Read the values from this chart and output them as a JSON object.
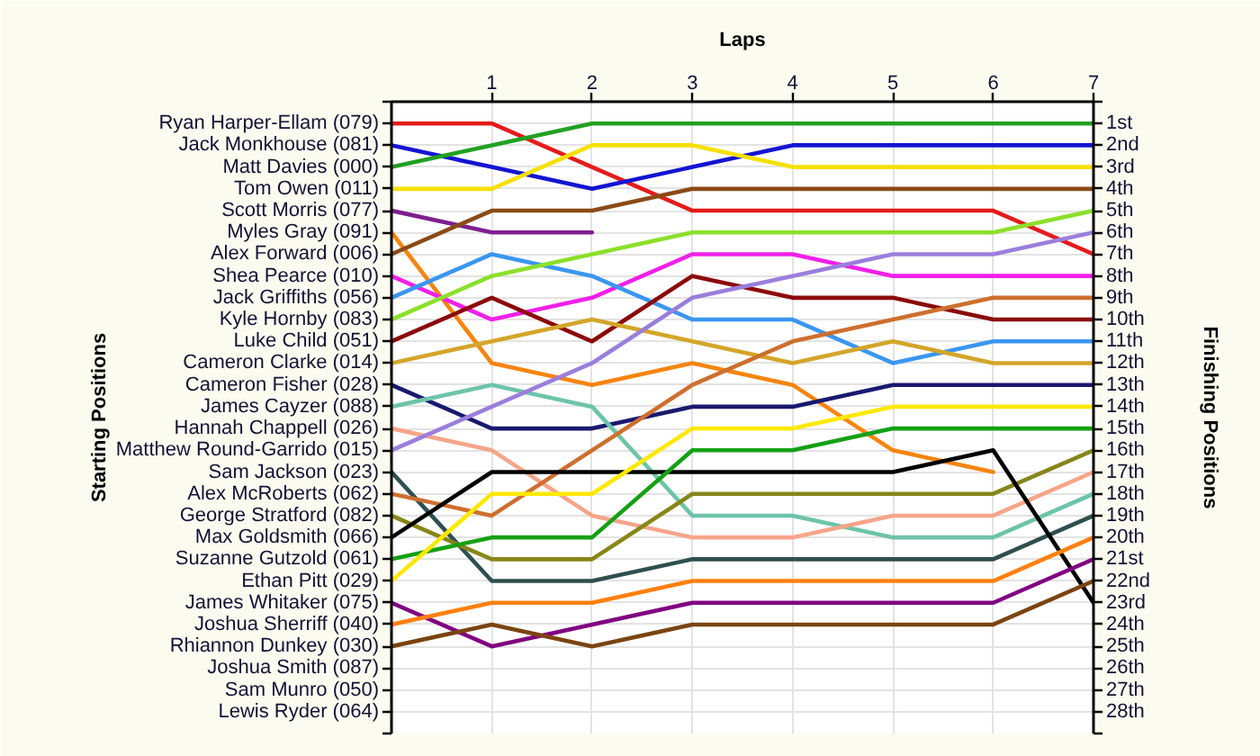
{
  "chart_data": {
    "type": "line",
    "xlabel": "Laps",
    "y2label": "Finishing Positions",
    "annotations": [
      "Starting Positions"
    ],
    "x": [
      0,
      1,
      2,
      3,
      4,
      5,
      6,
      7
    ],
    "xlim": [
      0,
      7
    ],
    "xticks": [
      1,
      2,
      3,
      4,
      5,
      6,
      7
    ],
    "y_categories": [
      "Ryan Harper-Ellam (079)",
      "Jack Monkhouse (081)",
      "Matt Davies (000)",
      "Tom Owen (011)",
      "Scott Morris (077)",
      "Myles Gray (091)",
      "Alex Forward (006)",
      "Shea Pearce (010)",
      "Jack Griffiths (056)",
      "Kyle Hornby (083)",
      "Luke Child (051)",
      "Cameron Clarke (014)",
      "Cameron Fisher (028)",
      "James Cayzer (088)",
      "Hannah Chappell (026)",
      "Matthew Round-Garrido (015)",
      "Sam Jackson (023)",
      "Alex McRoberts (062)",
      "George Stratford (082)",
      "Max Goldsmith (066)",
      "Suzanne Gutzold (061)",
      "Ethan Pitt (029)",
      "James Whitaker (075)",
      "Joshua Sherriff (040)",
      "Rhiannon Dunkey (030)",
      "Joshua Smith (087)",
      "Sam Munro (050)",
      "Lewis Ryder (064)"
    ],
    "y2lim": [
      29,
      0
    ],
    "y2ticks": [
      {
        "value": 0,
        "label": null
      },
      {
        "value": 1,
        "label": "1st"
      },
      {
        "value": 2,
        "label": "2nd"
      },
      {
        "value": 3,
        "label": "3rd"
      },
      {
        "value": 4,
        "label": "4th"
      },
      {
        "value": 5,
        "label": "5th"
      },
      {
        "value": 6,
        "label": "6th"
      },
      {
        "value": 7,
        "label": "7th"
      },
      {
        "value": 8,
        "label": "8th"
      },
      {
        "value": 9,
        "label": "9th"
      },
      {
        "value": 10,
        "label": "10th"
      },
      {
        "value": 11,
        "label": "11th"
      },
      {
        "value": 12,
        "label": "12th"
      },
      {
        "value": 13,
        "label": "13th"
      },
      {
        "value": 14,
        "label": "14th"
      },
      {
        "value": 15,
        "label": "15th"
      },
      {
        "value": 16,
        "label": "16th"
      },
      {
        "value": 17,
        "label": "17th"
      },
      {
        "value": 18,
        "label": "18th"
      },
      {
        "value": 19,
        "label": "19th"
      },
      {
        "value": 20,
        "label": "20th"
      },
      {
        "value": 21,
        "label": "21st"
      },
      {
        "value": 22,
        "label": "22nd"
      },
      {
        "value": 23,
        "label": "23rd"
      },
      {
        "value": 24,
        "label": "24th"
      },
      {
        "value": 25,
        "label": "25th"
      },
      {
        "value": 26,
        "label": "26th"
      },
      {
        "value": 27,
        "label": "27th"
      },
      {
        "value": 28,
        "label": "28th"
      },
      {
        "value": 29,
        "label": null
      }
    ],
    "grid": true,
    "line_style": "solid",
    "series": [
      {
        "color": "#e41b1b",
        "axis": "y2",
        "values": [
          1,
          1,
          3,
          5,
          5,
          5,
          5,
          7
        ]
      },
      {
        "color": "#1414d2",
        "axis": "y2",
        "values": [
          2,
          3,
          4,
          3,
          2,
          2,
          2,
          2
        ]
      },
      {
        "color": "#22a022",
        "axis": "y2",
        "values": [
          3,
          2,
          1,
          1,
          1,
          1,
          1,
          1
        ]
      },
      {
        "color": "#f5e000",
        "axis": "y2",
        "values": [
          4,
          4,
          2,
          2,
          3,
          3,
          3,
          3
        ]
      },
      {
        "color": "#7f1f8f",
        "axis": "y2",
        "values": [
          5,
          6,
          6,
          null,
          null,
          null,
          null,
          null
        ]
      },
      {
        "color": "#f5850f",
        "axis": "y2",
        "values": [
          6,
          12,
          13,
          12,
          13,
          16,
          17,
          null
        ]
      },
      {
        "color": "#8b4a16",
        "axis": "y2",
        "values": [
          7,
          5,
          5,
          4,
          4,
          4,
          4,
          4
        ]
      },
      {
        "color": "#f020e8",
        "axis": "y2",
        "values": [
          8,
          10,
          9,
          7,
          7,
          8,
          8,
          8
        ]
      },
      {
        "color": "#3a96f0",
        "axis": "y2",
        "values": [
          9,
          7,
          8,
          10,
          10,
          12,
          11,
          11
        ]
      },
      {
        "color": "#8be02a",
        "axis": "y2",
        "values": [
          10,
          8,
          7,
          6,
          6,
          6,
          6,
          5
        ]
      },
      {
        "color": "#8b0a0a",
        "axis": "y2",
        "values": [
          11,
          9,
          11,
          8,
          9,
          9,
          10,
          10
        ]
      },
      {
        "color": "#d4a52a",
        "axis": "y2",
        "values": [
          12,
          11,
          10,
          11,
          12,
          11,
          12,
          12
        ]
      },
      {
        "color": "#191970",
        "axis": "y2",
        "values": [
          13,
          15,
          15,
          14,
          14,
          13,
          13,
          13
        ]
      },
      {
        "color": "#6dc4a8",
        "axis": "y2",
        "values": [
          14,
          13,
          14,
          19,
          19,
          20,
          20,
          18
        ]
      },
      {
        "color": "#f5a58a",
        "axis": "y2",
        "values": [
          15,
          16,
          19,
          20,
          20,
          19,
          19,
          17
        ]
      },
      {
        "color": "#9a7fdc",
        "axis": "y2",
        "values": [
          16,
          14,
          12,
          9,
          8,
          7,
          7,
          6
        ]
      },
      {
        "color": "#2f4f4f",
        "axis": "y2",
        "values": [
          17,
          22,
          22,
          21,
          21,
          21,
          21,
          19
        ]
      },
      {
        "color": "#cd6f2e",
        "axis": "y2",
        "values": [
          18,
          19,
          16,
          13,
          11,
          10,
          9,
          9
        ]
      },
      {
        "color": "#86861a",
        "axis": "y2",
        "values": [
          19,
          21,
          21,
          18,
          18,
          18,
          18,
          16
        ]
      },
      {
        "color": "#000000",
        "axis": "y2",
        "values": [
          20,
          17,
          17,
          17,
          17,
          17,
          16,
          23
        ]
      },
      {
        "color": "#15a015",
        "axis": "y2",
        "values": [
          21,
          20,
          20,
          16,
          16,
          15,
          15,
          15
        ]
      },
      {
        "color": "#ffe800",
        "axis": "y2",
        "values": [
          22,
          18,
          18,
          15,
          15,
          14,
          14,
          14
        ]
      },
      {
        "color": "#800080",
        "axis": "y2",
        "values": [
          23,
          25,
          24,
          23,
          23,
          23,
          23,
          21
        ]
      },
      {
        "color": "#ff8010",
        "axis": "y2",
        "values": [
          24,
          23,
          23,
          22,
          22,
          22,
          22,
          20
        ]
      },
      {
        "color": "#7a4410",
        "axis": "y2",
        "values": [
          25,
          24,
          25,
          24,
          24,
          24,
          24,
          22
        ]
      }
    ]
  }
}
